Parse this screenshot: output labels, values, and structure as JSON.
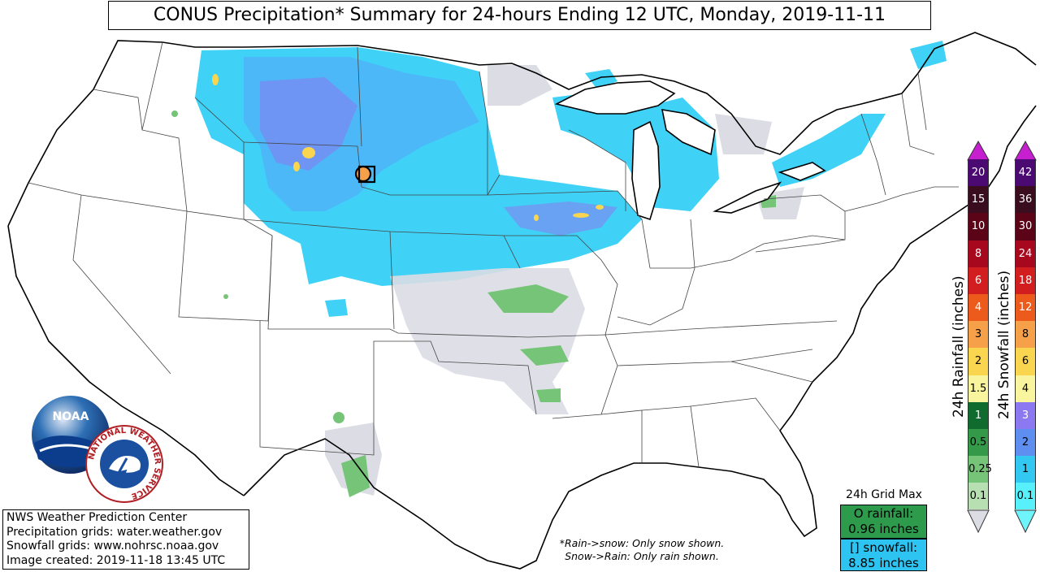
{
  "title": "CONUS Precipitation* Summary for 24-hours Ending 12 UTC, Monday, 2019-11-11",
  "credits": [
    "NWS Weather Prediction Center",
    "Precipitation grids: water.weather.gov",
    "Snowfall grids: www.nohrsc.noaa.gov",
    "Image created: 2019-11-18 13:45 UTC"
  ],
  "note": [
    "*Rain->snow: Only snow shown.",
    "Snow->Rain: Only rain shown."
  ],
  "grid_max": {
    "heading": "24h Grid Max",
    "rain_label": "O rainfall:",
    "rain_value": "0.96 inches",
    "snow_label": "[] snowfall:",
    "snow_value": "8.85 inches"
  },
  "rain_scale": {
    "label": "24h Rainfall (inches)",
    "levels": [
      "20",
      "15",
      "10",
      "8",
      "6",
      "4",
      "3",
      "2",
      "1.5",
      "1",
      "0.5",
      "0.25",
      "0.1"
    ],
    "colors": [
      "#4a0a72",
      "#3a0d1e",
      "#5c0417",
      "#a7081d",
      "#d21e1e",
      "#ec5a1c",
      "#f7a04a",
      "#f9d550",
      "#f9f59e",
      "#106b2e",
      "#349a49",
      "#75c477",
      "#b7dfb2"
    ],
    "top_cap": "#c61fd0",
    "bottom_cap": "#dcdde4"
  },
  "snow_scale": {
    "label": "24h Snowfall (inches)",
    "levels": [
      "42",
      "36",
      "30",
      "24",
      "18",
      "12",
      "8",
      "6",
      "4",
      "3",
      "2",
      "1",
      "0.1"
    ],
    "colors": [
      "#4a0a72",
      "#3a0d1e",
      "#5c0417",
      "#a7081d",
      "#d21e1e",
      "#ec5a1c",
      "#f7a04a",
      "#f9d550",
      "#f9f59e",
      "#8c78f0",
      "#5e8ff0",
      "#33c8f2",
      "#58f0fb"
    ],
    "top_cap": "#c61fd0",
    "bottom_cap": "#70f4fb"
  },
  "logos": {
    "noaa": "NOAA",
    "nws": "NATIONAL WEATHER SERVICE"
  },
  "map_icons": {
    "rain_max_marker": "circle-marker-icon",
    "snow_max_marker": "square-marker-icon"
  }
}
